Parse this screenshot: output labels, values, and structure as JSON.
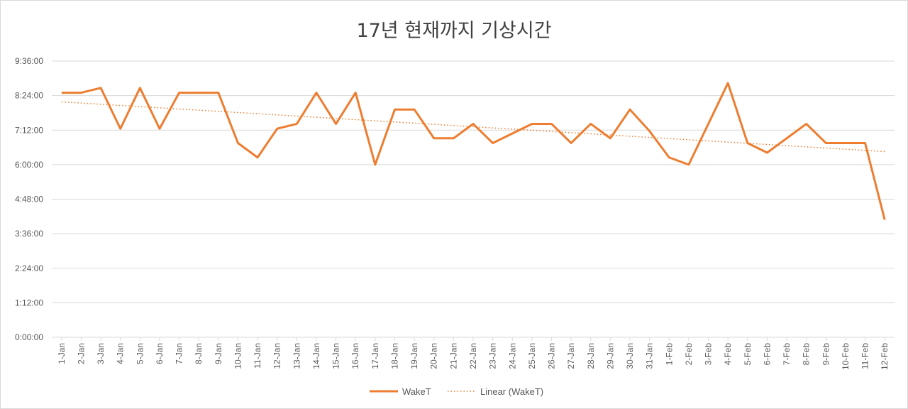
{
  "chart_data": {
    "type": "line",
    "title": "17년 현재까지 기상시간",
    "xlabel": "",
    "ylabel": "",
    "ylim": [
      "0:00:00",
      "9:36:00"
    ],
    "y_ticks": [
      "0:00:00",
      "1:12:00",
      "2:24:00",
      "3:36:00",
      "4:48:00",
      "6:00:00",
      "7:12:00",
      "8:24:00",
      "9:36:00"
    ],
    "categories": [
      "1-Jan",
      "2-Jan",
      "3-Jan",
      "4-Jan",
      "5-Jan",
      "6-Jan",
      "7-Jan",
      "8-Jan",
      "9-Jan",
      "10-Jan",
      "11-Jan",
      "12-Jan",
      "13-Jan",
      "14-Jan",
      "15-Jan",
      "16-Jan",
      "17-Jan",
      "18-Jan",
      "19-Jan",
      "20-Jan",
      "21-Jan",
      "22-Jan",
      "23-Jan",
      "24-Jan",
      "25-Jan",
      "26-Jan",
      "27-Jan",
      "28-Jan",
      "29-Jan",
      "30-Jan",
      "31-Jan",
      "1-Feb",
      "2-Feb",
      "3-Feb",
      "4-Feb",
      "5-Feb",
      "6-Feb",
      "7-Feb",
      "8-Feb",
      "9-Feb",
      "10-Feb",
      "11-Feb",
      "12-Feb"
    ],
    "series": [
      {
        "name": "WakeT",
        "color": "#ed7d31",
        "values": [
          "8:30",
          "8:30",
          "8:40",
          "7:15",
          "8:40",
          "7:15",
          "8:30",
          "8:30",
          "8:30",
          "6:45",
          "6:15",
          "7:15",
          "7:25",
          "8:30",
          "7:25",
          "8:30",
          "6:00",
          "7:55",
          "7:55",
          "6:55",
          "6:55",
          "7:25",
          "6:45",
          "7:05",
          "7:25",
          "7:25",
          "6:45",
          "7:25",
          "6:55",
          "7:55",
          "7:10",
          "6:15",
          "6:00",
          "7:25",
          "8:50",
          "6:45",
          "6:25",
          "6:55",
          "7:25",
          "6:45",
          "6:45",
          "6:45",
          "4:05"
        ]
      }
    ],
    "trendline": {
      "name": "Linear (WakeT)",
      "type": "linear",
      "color": "#ed7d31",
      "style": "dotted"
    },
    "grid": true,
    "legend_position": "bottom"
  }
}
